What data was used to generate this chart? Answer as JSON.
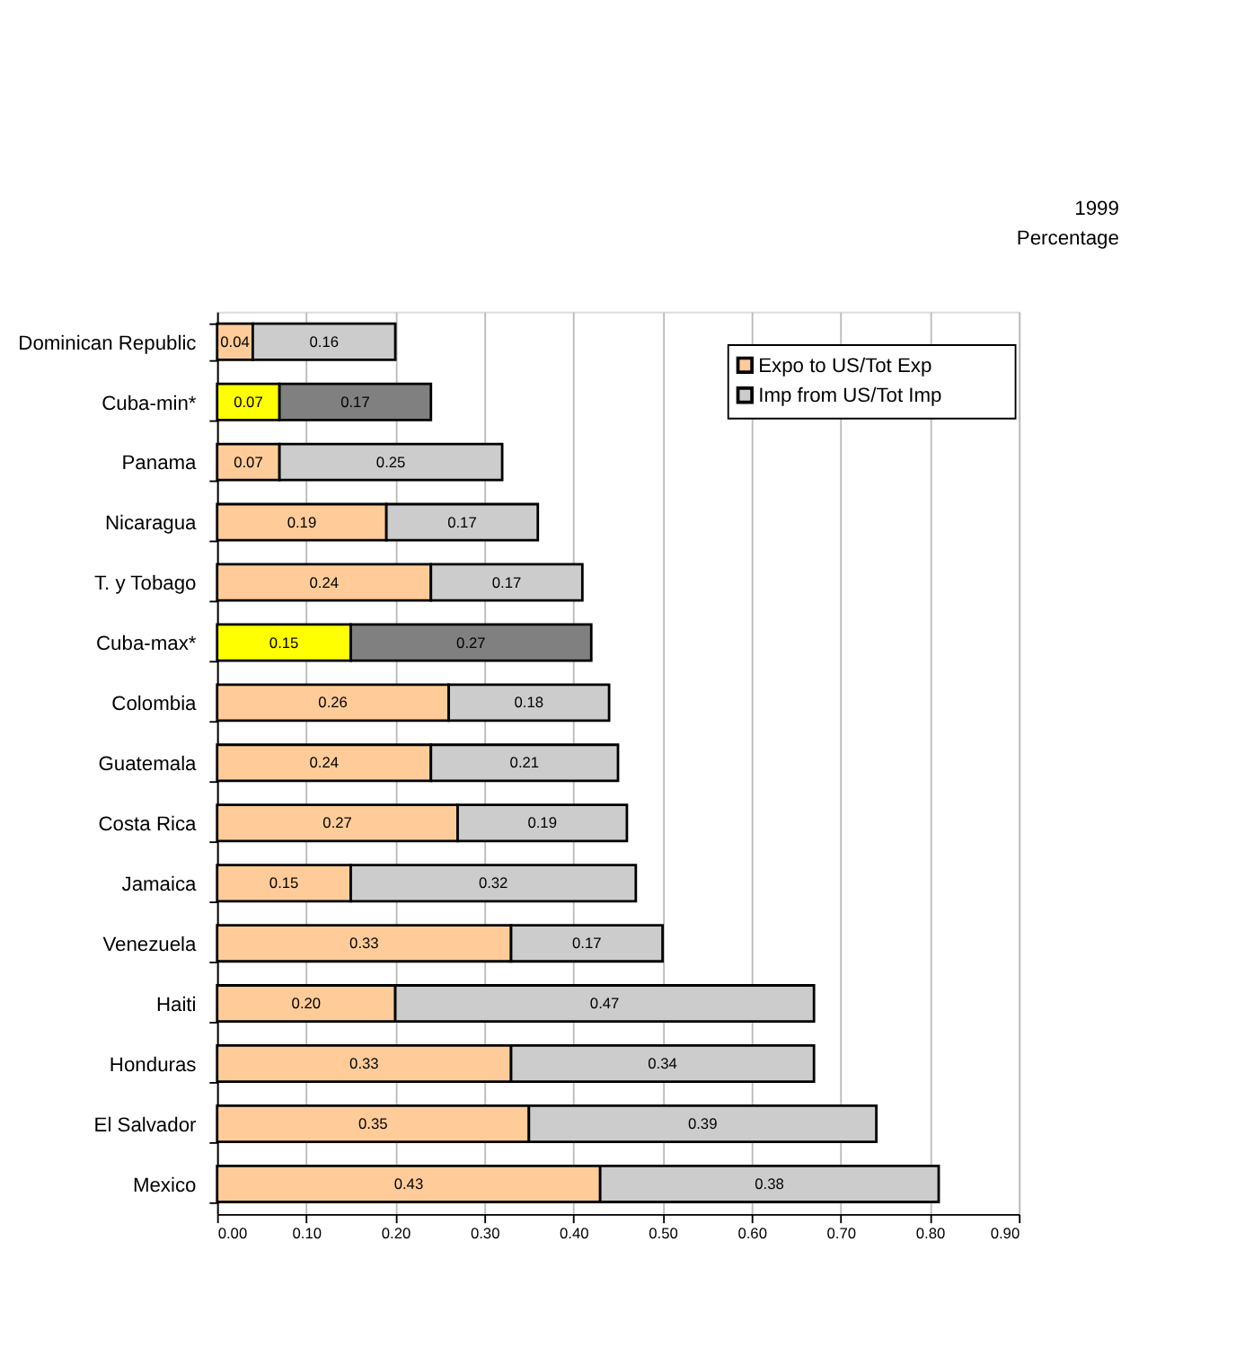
{
  "chart_data": {
    "type": "bar",
    "orientation": "horizontal",
    "stacked": true,
    "categories": [
      "Dominican Republic",
      "Cuba-min*",
      "Panama",
      "Nicaragua",
      "T. y Tobago",
      "Cuba-max*",
      "Colombia",
      "Guatemala",
      "Costa Rica",
      "Jamaica",
      "Venezuela",
      "Haiti",
      "Honduras",
      "El Salvador",
      "Mexico"
    ],
    "series": [
      {
        "name": "Expo to US/Tot Exp",
        "color": "#ffcc99",
        "colors": [
          "#ffcc99",
          "#ffff00",
          "#ffcc99",
          "#ffcc99",
          "#ffcc99",
          "#ffff00",
          "#ffcc99",
          "#ffcc99",
          "#ffcc99",
          "#ffcc99",
          "#ffcc99",
          "#ffcc99",
          "#ffcc99",
          "#ffcc99",
          "#ffcc99"
        ],
        "values": [
          0.04,
          0.07,
          0.07,
          0.19,
          0.24,
          0.15,
          0.26,
          0.24,
          0.27,
          0.15,
          0.33,
          0.2,
          0.33,
          0.35,
          0.43
        ],
        "value_labels": [
          "0.04",
          "0.07",
          "0.07",
          "0.19",
          "0.24",
          "0.15",
          "0.26",
          "0.24",
          "0.27",
          "0.15",
          "0.33",
          "0.20",
          "0.33",
          "0.35",
          "0.43"
        ]
      },
      {
        "name": "Imp from US/Tot Imp",
        "color": "#cccccc",
        "colors": [
          "#cccccc",
          "#808080",
          "#cccccc",
          "#cccccc",
          "#cccccc",
          "#808080",
          "#cccccc",
          "#cccccc",
          "#cccccc",
          "#cccccc",
          "#cccccc",
          "#cccccc",
          "#cccccc",
          "#cccccc",
          "#cccccc"
        ],
        "values": [
          0.16,
          0.17,
          0.25,
          0.17,
          0.17,
          0.27,
          0.18,
          0.21,
          0.19,
          0.32,
          0.17,
          0.47,
          0.34,
          0.39,
          0.38
        ],
        "value_labels": [
          "0.16",
          "0.17",
          "0.25",
          "0.17",
          "0.17",
          "0.27",
          "0.18",
          "0.21",
          "0.19",
          "0.32",
          "0.17",
          "0.47",
          "0.34",
          "0.39",
          "0.38"
        ]
      }
    ],
    "xlim": [
      0,
      0.9
    ],
    "xticks": [
      {
        "value": 0,
        "label": "0.00"
      },
      {
        "value": 0.1,
        "label": "0.10"
      },
      {
        "value": 0.2,
        "label": "0.20"
      },
      {
        "value": 0.3,
        "label": "0.30"
      },
      {
        "value": 0.4,
        "label": "0.40"
      },
      {
        "value": 0.5,
        "label": "0.50"
      },
      {
        "value": 0.6,
        "label": "0.60"
      },
      {
        "value": 0.7,
        "label": "0.70"
      },
      {
        "value": 0.8,
        "label": "0.80"
      },
      {
        "value": 0.9,
        "label": "0.90"
      }
    ],
    "grid": "x",
    "legend": "top right",
    "annotations": [
      "1999",
      "Percentage"
    ]
  }
}
